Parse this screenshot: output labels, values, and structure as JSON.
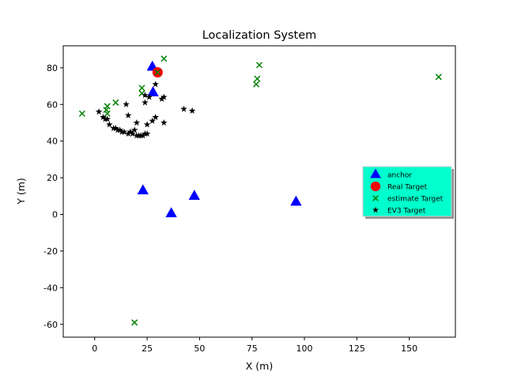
{
  "chart_data": {
    "type": "scatter",
    "title": "Localization System",
    "xlabel": "X (m)",
    "ylabel": "Y (m)",
    "xlim": [
      -15,
      172
    ],
    "ylim": [
      -67,
      92
    ],
    "xticks": [
      0,
      25,
      50,
      75,
      100,
      125,
      150
    ],
    "yticks": [
      -60,
      -40,
      -20,
      0,
      20,
      40,
      60,
      80
    ],
    "grid": false,
    "legend_position": "center-right",
    "series": [
      {
        "name": "anchor",
        "marker": "triangle",
        "color": "#0000ff",
        "points": [
          [
            27.5,
            80.5
          ],
          [
            27.8,
            66.5
          ],
          [
            23,
            13
          ],
          [
            36.5,
            0.5
          ],
          [
            47.5,
            10
          ],
          [
            96,
            6.8
          ]
        ]
      },
      {
        "name": "Real Target",
        "marker": "circle",
        "color": "#ff0000",
        "points": [
          [
            30,
            77.5
          ]
        ]
      },
      {
        "name": "estimate Target",
        "marker": "x",
        "color": "#008000",
        "points": [
          [
            33,
            85
          ],
          [
            78.5,
            81.5
          ],
          [
            77.5,
            74
          ],
          [
            77,
            71
          ],
          [
            30,
            77.5
          ],
          [
            22.5,
            69
          ],
          [
            22.5,
            66
          ],
          [
            6,
            59
          ],
          [
            10,
            61
          ],
          [
            5.5,
            57
          ],
          [
            6,
            55
          ],
          [
            -6,
            55
          ],
          [
            164,
            75
          ],
          [
            19,
            -59
          ]
        ]
      },
      {
        "name": "EV3 Target",
        "marker": "star",
        "color": "#000000",
        "points": [
          [
            29,
            71
          ],
          [
            24,
            65
          ],
          [
            26,
            64
          ],
          [
            32,
            63
          ],
          [
            33,
            64
          ],
          [
            24,
            61
          ],
          [
            15,
            60
          ],
          [
            42.5,
            57.5
          ],
          [
            46.5,
            56.5
          ],
          [
            2,
            56
          ],
          [
            16,
            54
          ],
          [
            4,
            53
          ],
          [
            5,
            52
          ],
          [
            6,
            52
          ],
          [
            27.5,
            51
          ],
          [
            29,
            53
          ],
          [
            33,
            50
          ],
          [
            20,
            50
          ],
          [
            25,
            49
          ],
          [
            7,
            49
          ],
          [
            9,
            47
          ],
          [
            10,
            47
          ],
          [
            11,
            46
          ],
          [
            12,
            46
          ],
          [
            13,
            45
          ],
          [
            14,
            45
          ],
          [
            16,
            44
          ],
          [
            18,
            44
          ],
          [
            17,
            45
          ],
          [
            19,
            46
          ],
          [
            20,
            43
          ],
          [
            21,
            43
          ],
          [
            22,
            43
          ],
          [
            23,
            43
          ],
          [
            24,
            44
          ],
          [
            25,
            44
          ]
        ]
      }
    ]
  }
}
